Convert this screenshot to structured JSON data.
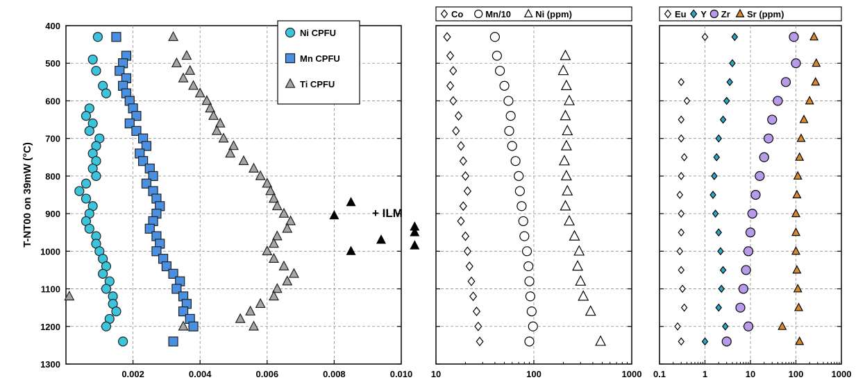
{
  "ylabel": "T-NT00 on 39mW (°C)",
  "colors": {
    "ni_cpfu": "#3cc4dc",
    "mn_cpfu": "#4a90e2",
    "ti_cpfu": "#a6a6a6",
    "ilm": "#000000",
    "y_marker": "#2aa8c8",
    "zr_marker": "#b79be8",
    "sr_marker": "#d98b2b"
  },
  "chart_data": [
    {
      "type": "scatter",
      "xlim": [
        0,
        0.01
      ],
      "ylim": [
        1300,
        400
      ],
      "y_reversed": true,
      "y_ticks": [
        400,
        500,
        600,
        700,
        800,
        900,
        1000,
        1100,
        1200,
        1300
      ],
      "x_ticks": [
        0.002,
        0.004,
        0.006,
        0.008,
        0.01
      ],
      "x_tick_labels": [
        "0.002",
        "0.004",
        "0.006",
        "0.008",
        "0.010"
      ],
      "grid": true,
      "legend_position": "top-right",
      "annotation": "+ ILM",
      "series": [
        {
          "name": "Ni CPFU",
          "marker": "circle",
          "points": [
            [
              0.00095,
              430
            ],
            [
              0.0008,
              490
            ],
            [
              0.0009,
              520
            ],
            [
              0.0011,
              560
            ],
            [
              0.0012,
              580
            ],
            [
              0.0007,
              620
            ],
            [
              0.0006,
              640
            ],
            [
              0.0008,
              660
            ],
            [
              0.0007,
              680
            ],
            [
              0.001,
              700
            ],
            [
              0.0009,
              720
            ],
            [
              0.0008,
              740
            ],
            [
              0.0009,
              760
            ],
            [
              0.0008,
              780
            ],
            [
              0.0009,
              800
            ],
            [
              0.0006,
              820
            ],
            [
              0.0004,
              840
            ],
            [
              0.0006,
              860
            ],
            [
              0.0008,
              880
            ],
            [
              0.0007,
              900
            ],
            [
              0.0006,
              920
            ],
            [
              0.0007,
              940
            ],
            [
              0.0009,
              960
            ],
            [
              0.0009,
              980
            ],
            [
              0.001,
              1000
            ],
            [
              0.0011,
              1020
            ],
            [
              0.0012,
              1040
            ],
            [
              0.0011,
              1060
            ],
            [
              0.0013,
              1080
            ],
            [
              0.0012,
              1100
            ],
            [
              0.0014,
              1120
            ],
            [
              0.0014,
              1140
            ],
            [
              0.0015,
              1160
            ],
            [
              0.0013,
              1180
            ],
            [
              0.0012,
              1200
            ],
            [
              0.0017,
              1240
            ]
          ]
        },
        {
          "name": "Mn CPFU",
          "marker": "square",
          "points": [
            [
              0.0015,
              430
            ],
            [
              0.0018,
              480
            ],
            [
              0.0017,
              500
            ],
            [
              0.0016,
              520
            ],
            [
              0.0018,
              540
            ],
            [
              0.0017,
              560
            ],
            [
              0.0018,
              580
            ],
            [
              0.0019,
              600
            ],
            [
              0.002,
              620
            ],
            [
              0.0021,
              640
            ],
            [
              0.0019,
              660
            ],
            [
              0.0021,
              680
            ],
            [
              0.0023,
              700
            ],
            [
              0.0024,
              720
            ],
            [
              0.0022,
              740
            ],
            [
              0.0023,
              760
            ],
            [
              0.0025,
              780
            ],
            [
              0.0026,
              800
            ],
            [
              0.0024,
              820
            ],
            [
              0.0026,
              840
            ],
            [
              0.0027,
              860
            ],
            [
              0.0028,
              880
            ],
            [
              0.0027,
              900
            ],
            [
              0.0026,
              920
            ],
            [
              0.0025,
              940
            ],
            [
              0.0027,
              960
            ],
            [
              0.0028,
              980
            ],
            [
              0.0027,
              1000
            ],
            [
              0.0029,
              1020
            ],
            [
              0.003,
              1040
            ],
            [
              0.0032,
              1060
            ],
            [
              0.0034,
              1080
            ],
            [
              0.0033,
              1100
            ],
            [
              0.0035,
              1120
            ],
            [
              0.0036,
              1140
            ],
            [
              0.0035,
              1160
            ],
            [
              0.0037,
              1180
            ],
            [
              0.0038,
              1200
            ],
            [
              0.0032,
              1240
            ]
          ]
        },
        {
          "name": "Ti CPFU",
          "marker": "triangle",
          "points": [
            [
              0.0032,
              430
            ],
            [
              0.0036,
              480
            ],
            [
              0.0033,
              500
            ],
            [
              0.0037,
              520
            ],
            [
              0.0035,
              540
            ],
            [
              0.0038,
              560
            ],
            [
              0.004,
              580
            ],
            [
              0.0042,
              600
            ],
            [
              0.0043,
              620
            ],
            [
              0.0044,
              640
            ],
            [
              0.0046,
              660
            ],
            [
              0.0045,
              680
            ],
            [
              0.0047,
              700
            ],
            [
              0.005,
              720
            ],
            [
              0.0049,
              740
            ],
            [
              0.0053,
              760
            ],
            [
              0.0056,
              780
            ],
            [
              0.0058,
              800
            ],
            [
              0.006,
              820
            ],
            [
              0.0061,
              840
            ],
            [
              0.0062,
              860
            ],
            [
              0.0063,
              880
            ],
            [
              0.0065,
              900
            ],
            [
              0.0067,
              920
            ],
            [
              0.0066,
              940
            ],
            [
              0.0063,
              960
            ],
            [
              0.0062,
              980
            ],
            [
              0.006,
              1000
            ],
            [
              0.0062,
              1020
            ],
            [
              0.0065,
              1040
            ],
            [
              0.0068,
              1060
            ],
            [
              0.0066,
              1080
            ],
            [
              0.0063,
              1100
            ],
            [
              0.0062,
              1120
            ],
            [
              0.0058,
              1140
            ],
            [
              0.0055,
              1160
            ],
            [
              0.0052,
              1180
            ],
            [
              0.0056,
              1200
            ],
            [
              0.0035,
              1200
            ],
            [
              0.0001,
              1120
            ]
          ]
        },
        {
          "name": "ILM",
          "marker": "triangle",
          "points": [
            [
              0.0085,
              870
            ],
            [
              0.008,
              905
            ],
            [
              0.0085,
              1000
            ],
            [
              0.0094,
              970
            ],
            [
              0.0104,
              935
            ],
            [
              0.0104,
              950
            ],
            [
              0.0104,
              985
            ]
          ]
        }
      ]
    },
    {
      "type": "scatter",
      "x_scale": "log",
      "xlim": [
        10,
        1000
      ],
      "ylim": [
        1300,
        400
      ],
      "y_reversed": true,
      "x_tick_labels": [
        "10",
        "100",
        "1000"
      ],
      "grid": true,
      "legend_position": "top",
      "series": [
        {
          "name": "Co",
          "marker": "diamond",
          "points": [
            [
              13,
              430
            ],
            [
              14,
              480
            ],
            [
              15,
              520
            ],
            [
              14,
              560
            ],
            [
              15,
              600
            ],
            [
              17,
              640
            ],
            [
              16,
              680
            ],
            [
              18,
              720
            ],
            [
              19,
              760
            ],
            [
              20,
              800
            ],
            [
              21,
              840
            ],
            [
              19,
              880
            ],
            [
              18,
              920
            ],
            [
              20,
              960
            ],
            [
              21,
              1000
            ],
            [
              22,
              1040
            ],
            [
              23,
              1080
            ],
            [
              24,
              1120
            ],
            [
              26,
              1160
            ],
            [
              27,
              1200
            ],
            [
              28,
              1240
            ]
          ]
        },
        {
          "name": "Mn/10",
          "marker": "circle",
          "points": [
            [
              40,
              430
            ],
            [
              42,
              480
            ],
            [
              45,
              520
            ],
            [
              50,
              560
            ],
            [
              55,
              600
            ],
            [
              58,
              640
            ],
            [
              56,
              680
            ],
            [
              60,
              720
            ],
            [
              65,
              760
            ],
            [
              70,
              800
            ],
            [
              72,
              840
            ],
            [
              75,
              880
            ],
            [
              78,
              920
            ],
            [
              80,
              960
            ],
            [
              85,
              1000
            ],
            [
              88,
              1040
            ],
            [
              90,
              1080
            ],
            [
              92,
              1120
            ],
            [
              95,
              1160
            ],
            [
              98,
              1200
            ],
            [
              90,
              1240
            ]
          ]
        },
        {
          "name": "Ni (ppm)",
          "marker": "triangle",
          "points": [
            [
              210,
              480
            ],
            [
              200,
              520
            ],
            [
              215,
              560
            ],
            [
              230,
              600
            ],
            [
              210,
              640
            ],
            [
              220,
              680
            ],
            [
              215,
              720
            ],
            [
              205,
              760
            ],
            [
              215,
              800
            ],
            [
              220,
              840
            ],
            [
              210,
              880
            ],
            [
              230,
              920
            ],
            [
              260,
              960
            ],
            [
              290,
              1000
            ],
            [
              280,
              1040
            ],
            [
              300,
              1080
            ],
            [
              320,
              1120
            ],
            [
              380,
              1160
            ],
            [
              480,
              1240
            ]
          ]
        }
      ]
    },
    {
      "type": "scatter",
      "x_scale": "log",
      "xlim": [
        0.1,
        1000
      ],
      "ylim": [
        1300,
        400
      ],
      "y_reversed": true,
      "x_tick_labels": [
        "0.1",
        "1",
        "10",
        "100",
        "1000"
      ],
      "grid": true,
      "legend_position": "top",
      "series": [
        {
          "name": "Eu",
          "marker": "diamond",
          "points": [
            [
              0.3,
              550
            ],
            [
              0.4,
              600
            ],
            [
              0.3,
              650
            ],
            [
              0.3,
              700
            ],
            [
              0.35,
              750
            ],
            [
              0.3,
              800
            ],
            [
              0.28,
              850
            ],
            [
              0.3,
              900
            ],
            [
              0.3,
              950
            ],
            [
              0.28,
              1000
            ],
            [
              0.3,
              1050
            ],
            [
              0.32,
              1100
            ],
            [
              0.35,
              1150
            ],
            [
              0.25,
              1200
            ],
            [
              0.3,
              1240
            ],
            [
              1.0,
              430
            ]
          ]
        },
        {
          "name": "Y",
          "marker": "diamond",
          "points": [
            [
              4.5,
              430
            ],
            [
              4,
              500
            ],
            [
              3.5,
              550
            ],
            [
              3,
              600
            ],
            [
              2.5,
              650
            ],
            [
              2,
              700
            ],
            [
              1.8,
              750
            ],
            [
              1.6,
              800
            ],
            [
              1.5,
              850
            ],
            [
              1.7,
              900
            ],
            [
              2,
              950
            ],
            [
              2.2,
              1000
            ],
            [
              2.5,
              1050
            ],
            [
              2.3,
              1100
            ],
            [
              2.0,
              1150
            ],
            [
              2.8,
              1200
            ],
            [
              1.0,
              1240
            ]
          ]
        },
        {
          "name": "Zr",
          "marker": "circle",
          "points": [
            [
              90,
              430
            ],
            [
              100,
              500
            ],
            [
              60,
              550
            ],
            [
              40,
              600
            ],
            [
              30,
              650
            ],
            [
              25,
              700
            ],
            [
              20,
              750
            ],
            [
              16,
              800
            ],
            [
              13,
              850
            ],
            [
              11,
              900
            ],
            [
              10,
              950
            ],
            [
              9,
              1000
            ],
            [
              8,
              1050
            ],
            [
              7,
              1100
            ],
            [
              6,
              1150
            ],
            [
              9,
              1200
            ],
            [
              3,
              1240
            ]
          ]
        },
        {
          "name": "Sr (ppm)",
          "marker": "triangle",
          "points": [
            [
              250,
              430
            ],
            [
              280,
              500
            ],
            [
              270,
              550
            ],
            [
              200,
              600
            ],
            [
              150,
              650
            ],
            [
              130,
              700
            ],
            [
              120,
              750
            ],
            [
              110,
              800
            ],
            [
              105,
              850
            ],
            [
              100,
              900
            ],
            [
              100,
              950
            ],
            [
              100,
              1000
            ],
            [
              105,
              1050
            ],
            [
              110,
              1100
            ],
            [
              115,
              1150
            ],
            [
              50,
              1200
            ],
            [
              120,
              1240
            ]
          ]
        }
      ]
    }
  ]
}
